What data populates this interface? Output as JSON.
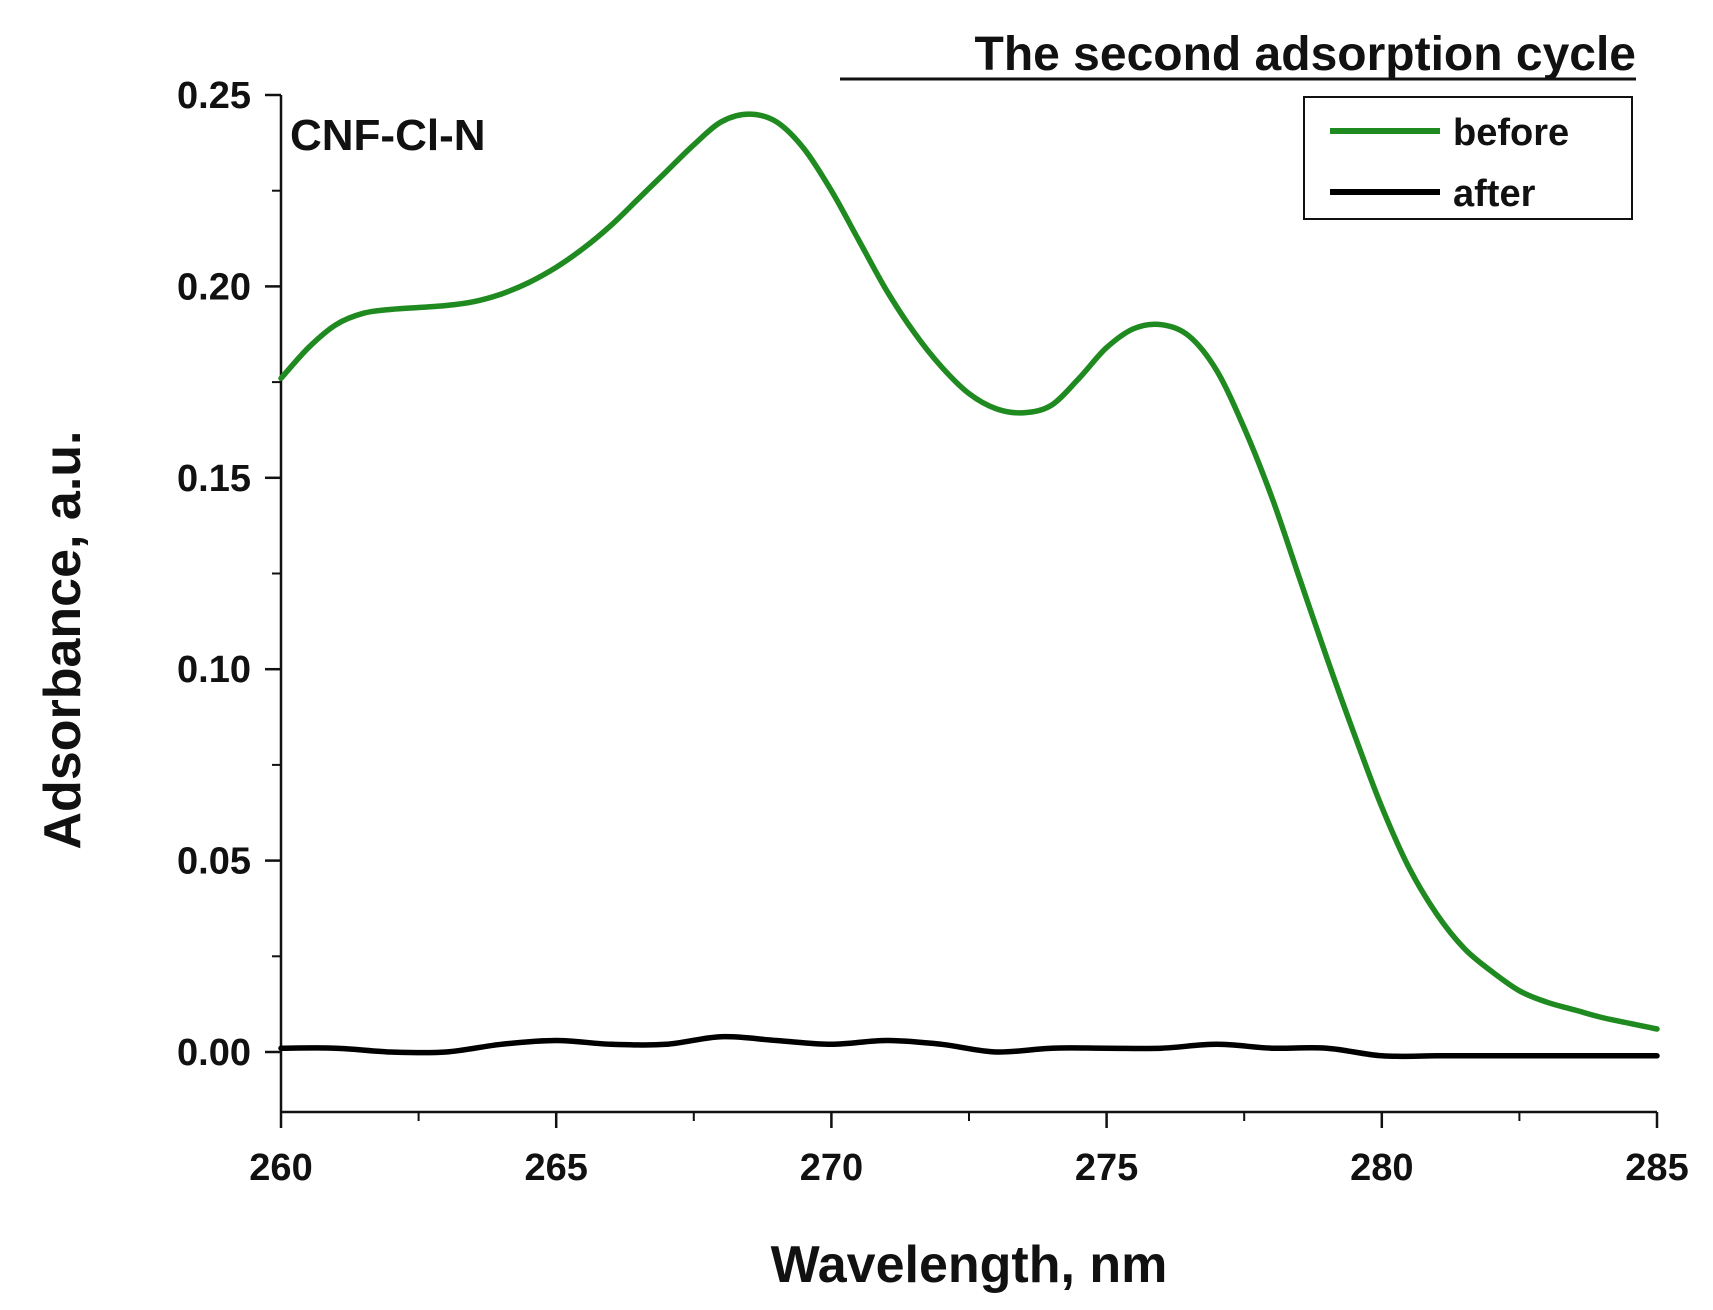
{
  "chart_data": {
    "type": "line",
    "title": "The second adsorption cycle",
    "panel_label": "CNF-Cl-N",
    "xlabel": "Wavelength, nm",
    "ylabel": "Adsorbance, a.u.",
    "xlim": [
      260,
      285
    ],
    "ylim": [
      -0.015,
      0.25
    ],
    "xticks": [
      260,
      265,
      270,
      275,
      280,
      285
    ],
    "xtick_labels": [
      "260",
      "265",
      "270",
      "275",
      "280",
      "285"
    ],
    "yticks": [
      0.0,
      0.05,
      0.1,
      0.15,
      0.2,
      0.25
    ],
    "ytick_labels": [
      "0.00",
      "0.05",
      "0.10",
      "0.15",
      "0.20",
      "0.25"
    ],
    "grid": false,
    "legend_position": "top-right",
    "series": [
      {
        "name": "before",
        "color": "#1f8a1f",
        "x": [
          260,
          260.5,
          261,
          261.5,
          262,
          262.5,
          263,
          263.5,
          264,
          264.5,
          265,
          265.5,
          266,
          266.5,
          267,
          267.5,
          268,
          268.5,
          269,
          269.5,
          270,
          270.5,
          271,
          271.5,
          272,
          272.5,
          273,
          273.5,
          274,
          274.5,
          275,
          275.5,
          276,
          276.5,
          277,
          277.5,
          278,
          278.5,
          279,
          279.5,
          280,
          280.5,
          281,
          281.5,
          282,
          282.5,
          283,
          283.5,
          284,
          284.5,
          285
        ],
        "y": [
          0.176,
          0.184,
          0.19,
          0.193,
          0.194,
          0.1945,
          0.195,
          0.196,
          0.198,
          0.201,
          0.205,
          0.21,
          0.216,
          0.223,
          0.23,
          0.237,
          0.243,
          0.245,
          0.243,
          0.236,
          0.225,
          0.212,
          0.199,
          0.188,
          0.179,
          0.172,
          0.168,
          0.167,
          0.169,
          0.176,
          0.184,
          0.189,
          0.19,
          0.187,
          0.178,
          0.163,
          0.145,
          0.124,
          0.103,
          0.083,
          0.064,
          0.048,
          0.036,
          0.027,
          0.021,
          0.016,
          0.013,
          0.011,
          0.009,
          0.0075,
          0.006
        ]
      },
      {
        "name": "after",
        "color": "#000000",
        "x": [
          260,
          261,
          262,
          263,
          264,
          265,
          266,
          267,
          268,
          269,
          270,
          271,
          272,
          273,
          274,
          275,
          276,
          277,
          278,
          279,
          280,
          281,
          282,
          283,
          284,
          285
        ],
        "y": [
          0.001,
          0.001,
          0.0,
          0.0,
          0.002,
          0.003,
          0.002,
          0.002,
          0.004,
          0.003,
          0.002,
          0.003,
          0.002,
          0.0,
          0.001,
          0.001,
          0.001,
          0.002,
          0.001,
          0.001,
          -0.001,
          -0.001,
          -0.001,
          -0.001,
          -0.001,
          -0.001
        ]
      }
    ]
  }
}
